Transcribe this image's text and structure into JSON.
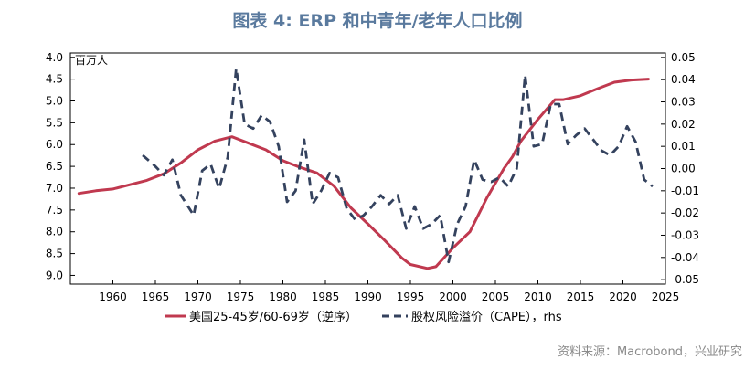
{
  "figure_title": "图表 4:  ERP 和中青年/老年人口比例",
  "source_note": "资料来源：Macrobond，兴业研究",
  "colors": {
    "population": "#c0394f",
    "erp": "#34425e",
    "title": "#5a7a9e",
    "axis": "#000000"
  },
  "chart_data": {
    "type": "line",
    "title": "",
    "xlabel": "",
    "ylabel_left": "百万人",
    "ylabel_right": "",
    "x_range": [
      1955,
      2025
    ],
    "x_ticks": [
      1960,
      1965,
      1970,
      1975,
      1980,
      1985,
      1990,
      1995,
      2000,
      2005,
      2010,
      2015,
      2020,
      2025
    ],
    "y_left_range": [
      9.2,
      3.9
    ],
    "y_left_inverted": true,
    "y_left_ticks": [
      "4.0",
      "4.5",
      "5.0",
      "5.5",
      "6.0",
      "6.5",
      "7.0",
      "7.5",
      "8.0",
      "8.5",
      "9.0"
    ],
    "y_right_range": [
      -0.052,
      0.052
    ],
    "y_right_ticks": [
      "0.05",
      "0.04",
      "0.03",
      "0.02",
      "0.01",
      "0.00",
      "-0.01",
      "-0.02",
      "-0.03",
      "-0.04",
      "-0.05"
    ],
    "grid": false,
    "legend_position": "bottom",
    "series": [
      {
        "name": "美国25-45岁/60-69岁（逆序）",
        "axis": "left",
        "style": "solid",
        "x": [
          1956,
          1958,
          1960,
          1962,
          1964,
          1966,
          1968,
          1970,
          1972,
          1974,
          1976,
          1978,
          1980,
          1982,
          1984,
          1986,
          1988,
          1990,
          1992,
          1994,
          1995,
          1997,
          1998,
          2000,
          2002,
          2004,
          2006,
          2007,
          2008,
          2010,
          2012,
          2013,
          2015,
          2017,
          2019,
          2021,
          2023
        ],
        "values": [
          7.12,
          7.06,
          7.02,
          6.92,
          6.82,
          6.67,
          6.42,
          6.12,
          5.92,
          5.82,
          5.97,
          6.12,
          6.37,
          6.52,
          6.65,
          6.95,
          7.45,
          7.82,
          8.2,
          8.6,
          8.75,
          8.84,
          8.8,
          8.37,
          8.0,
          7.22,
          6.55,
          6.28,
          5.92,
          5.42,
          4.97,
          4.97,
          4.88,
          4.72,
          4.57,
          4.52,
          4.5
        ]
      },
      {
        "name": "股权风险溢价（CAPE），rhs",
        "axis": "right",
        "style": "dashed",
        "x": [
          1963.5,
          1965,
          1966,
          1967,
          1968,
          1969.5,
          1970.5,
          1971.5,
          1972.5,
          1973.5,
          1974.5,
          1975.5,
          1976.5,
          1977.5,
          1978.5,
          1979.5,
          1980.5,
          1981.5,
          1982.5,
          1983.5,
          1984.5,
          1985.5,
          1986.5,
          1987.5,
          1988.5,
          1989.5,
          1990.5,
          1991.5,
          1992.5,
          1993.5,
          1994.5,
          1995.5,
          1996.5,
          1997.5,
          1998.5,
          1999.5,
          2000.5,
          2001.5,
          2002.5,
          2003.5,
          2004.5,
          2005.5,
          2006.5,
          2007.5,
          2008.5,
          2009.5,
          2010.5,
          2011.5,
          2012.5,
          2013.5,
          2014.5,
          2015.5,
          2016.5,
          2017.5,
          2018.5,
          2019.5,
          2020.5,
          2021.5,
          2022.5,
          2023.5
        ],
        "values": [
          0.006,
          0.001,
          -0.003,
          0.004,
          -0.012,
          -0.021,
          -0.001,
          0.002,
          -0.009,
          0.005,
          0.045,
          0.02,
          0.018,
          0.024,
          0.021,
          0.01,
          -0.015,
          -0.01,
          0.013,
          -0.016,
          -0.01,
          -0.002,
          -0.004,
          -0.018,
          -0.023,
          -0.021,
          -0.017,
          -0.012,
          -0.016,
          -0.012,
          -0.027,
          -0.017,
          -0.027,
          -0.025,
          -0.021,
          -0.042,
          -0.025,
          -0.017,
          0.004,
          -0.005,
          -0.006,
          -0.004,
          -0.008,
          0.0,
          0.042,
          0.01,
          0.011,
          0.029,
          0.029,
          0.011,
          0.015,
          0.018,
          0.013,
          0.008,
          0.006,
          0.01,
          0.019,
          0.012,
          -0.005,
          -0.008
        ]
      }
    ]
  }
}
